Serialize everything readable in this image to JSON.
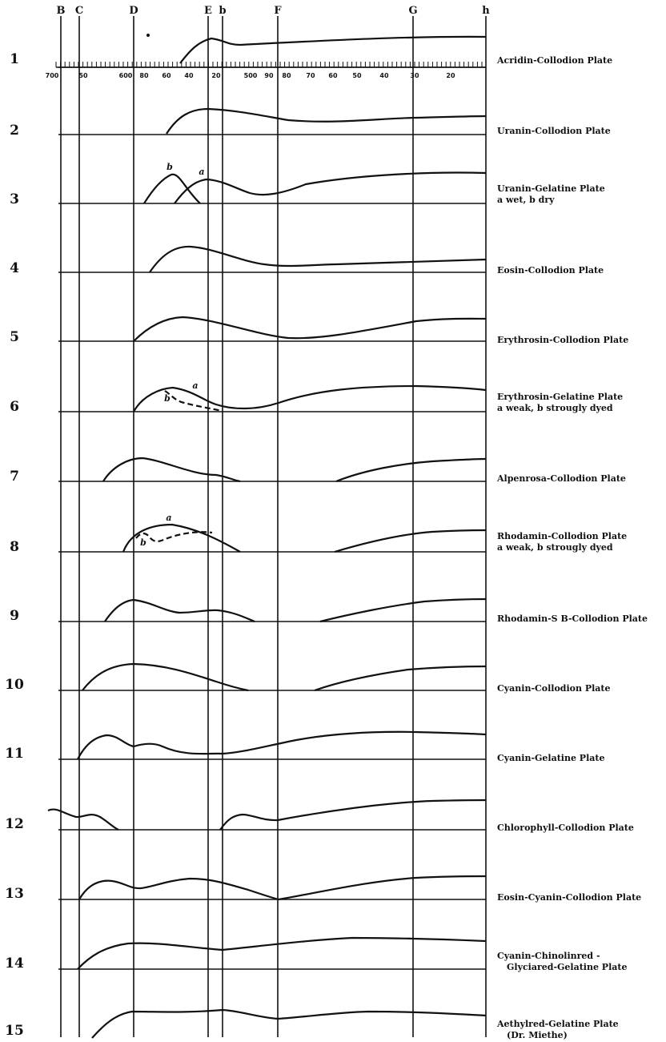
{
  "fraunhofer_lines": [
    "B",
    "C",
    "D",
    "E",
    "b",
    "F",
    "G",
    "h"
  ],
  "wavelength_scale": [
    "700",
    "50",
    "600",
    "80",
    "60",
    "40",
    "20",
    "500",
    "90",
    "80",
    "70",
    "60",
    "50",
    "40",
    "30",
    "20"
  ],
  "plates": [
    {
      "number": "1",
      "label": [
        "Acridin-Collodion Plate"
      ]
    },
    {
      "number": "2",
      "label": [
        "Uranin-Collodion Plate"
      ]
    },
    {
      "number": "3",
      "label": [
        "Uranin-Gelatine Plate",
        "a wet, b dry"
      ],
      "curve_labels": [
        "b",
        "a"
      ]
    },
    {
      "number": "4",
      "label": [
        "Eosin-Collodion Plate"
      ]
    },
    {
      "number": "5",
      "label": [
        "Erythrosin-Collodion Plate"
      ]
    },
    {
      "number": "6",
      "label": [
        "Erythrosin-Gelatine Plate",
        "a weak, b strougly dyed"
      ],
      "curve_labels": [
        "a",
        "b"
      ]
    },
    {
      "number": "7",
      "label": [
        "Alpenrosa-Collodion Plate"
      ]
    },
    {
      "number": "8",
      "label": [
        "Rhodamin-Collodion Plate",
        "a weak, b strougly dyed"
      ],
      "curve_labels": [
        "a",
        "b"
      ]
    },
    {
      "number": "9",
      "label": [
        "Rhodamin-S B-Collodion Plate"
      ]
    },
    {
      "number": "10",
      "label": [
        "Cyanin-Collodion Plate"
      ]
    },
    {
      "number": "11",
      "label": [
        "Cyanin-Gelatine Plate"
      ]
    },
    {
      "number": "12",
      "label": [
        "Chlorophyll-Collodion Plate"
      ]
    },
    {
      "number": "13",
      "label": [
        "Eosin-Cyanin-Collodion Plate"
      ]
    },
    {
      "number": "14",
      "label": [
        "Cyanin-Chinolinred -",
        "Glyciared-Gelatine Plate"
      ]
    },
    {
      "number": "15",
      "label": [
        "Aethylred-Gelatine Plate",
        "(Dr. Miethe)"
      ]
    }
  ]
}
